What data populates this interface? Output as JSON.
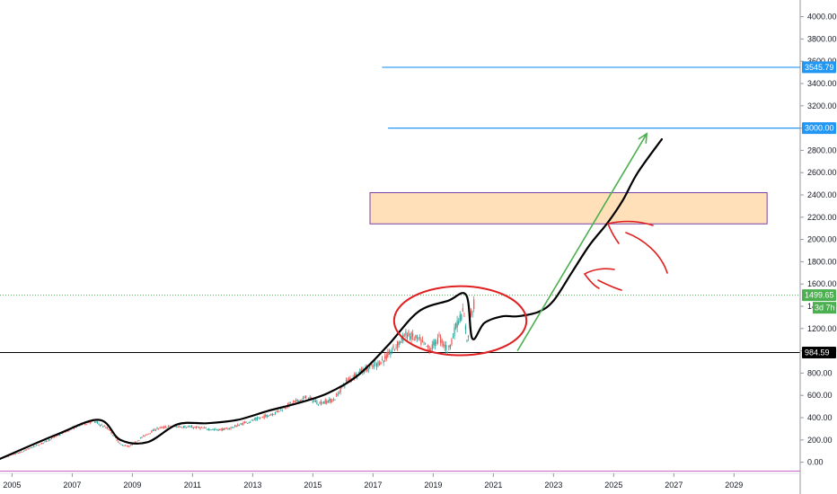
{
  "chart_data": {
    "type": "candlestick",
    "x_ticks": [
      "2005",
      "2007",
      "2009",
      "2011",
      "2013",
      "2015",
      "2017",
      "2019",
      "2021",
      "2023",
      "2025",
      "2027",
      "2029"
    ],
    "y_ticks": [
      "4000.00",
      "3800.00",
      "3600.00",
      "3400.00",
      "3200.00",
      "3000.00",
      "2800.00",
      "2600.00",
      "2400.00",
      "2200.00",
      "2000.00",
      "1800.00",
      "1600.00",
      "1400.00",
      "1200.00",
      "1000.00",
      "800.00",
      "600.00",
      "400.00",
      "200.00",
      "0.00"
    ],
    "ylim": [
      -100,
      4150
    ],
    "xlim": [
      2004.6,
      2031.2
    ],
    "price_path": [
      [
        2004.7,
        40
      ],
      [
        2005.3,
        90
      ],
      [
        2006.0,
        170
      ],
      [
        2006.6,
        250
      ],
      [
        2007.2,
        330
      ],
      [
        2007.7,
        370
      ],
      [
        2008.2,
        300
      ],
      [
        2008.6,
        160
      ],
      [
        2008.9,
        140
      ],
      [
        2009.3,
        220
      ],
      [
        2009.8,
        300
      ],
      [
        2010.2,
        320
      ],
      [
        2010.7,
        320
      ],
      [
        2011.2,
        310
      ],
      [
        2011.8,
        290
      ],
      [
        2012.2,
        300
      ],
      [
        2012.7,
        350
      ],
      [
        2013.3,
        400
      ],
      [
        2013.8,
        450
      ],
      [
        2014.3,
        530
      ],
      [
        2014.8,
        580
      ],
      [
        2015.2,
        530
      ],
      [
        2015.7,
        560
      ],
      [
        2016.1,
        720
      ],
      [
        2016.6,
        820
      ],
      [
        2017.0,
        860
      ],
      [
        2017.4,
        930
      ],
      [
        2017.8,
        1050
      ],
      [
        2018.1,
        1150
      ],
      [
        2018.5,
        1100
      ],
      [
        2018.9,
        1010
      ],
      [
        2019.2,
        1120
      ],
      [
        2019.5,
        1000
      ],
      [
        2019.8,
        1250
      ],
      [
        2020.0,
        1350
      ],
      [
        2020.15,
        1060
      ],
      [
        2020.25,
        1330
      ],
      [
        2020.4,
        1450
      ]
    ],
    "projection_curve": [
      [
        2004.6,
        30
      ],
      [
        2006.5,
        250
      ],
      [
        2007.9,
        380
      ],
      [
        2008.6,
        200
      ],
      [
        2009.5,
        180
      ],
      [
        2010.5,
        340
      ],
      [
        2011.5,
        350
      ],
      [
        2012.5,
        380
      ],
      [
        2013.5,
        460
      ],
      [
        2014.5,
        530
      ],
      [
        2015.5,
        620
      ],
      [
        2016.5,
        780
      ],
      [
        2017.5,
        1050
      ],
      [
        2018.5,
        1350
      ],
      [
        2019.5,
        1450
      ],
      [
        2020.1,
        1500
      ],
      [
        2020.3,
        1110
      ],
      [
        2020.7,
        1250
      ],
      [
        2021.3,
        1310
      ],
      [
        2021.8,
        1310
      ],
      [
        2022.5,
        1350
      ],
      [
        2023.0,
        1450
      ],
      [
        2023.6,
        1700
      ],
      [
        2024.2,
        1950
      ],
      [
        2024.8,
        2150
      ],
      [
        2025.3,
        2350
      ],
      [
        2025.8,
        2600
      ],
      [
        2026.6,
        2900
      ]
    ],
    "last_price": "1499.65",
    "last_price_countdown": "3d 7h",
    "support_level": "984.59",
    "target_levels": [
      "3000.00",
      "3545.79"
    ],
    "zone": {
      "low": 2140,
      "high": 2420,
      "start": 2016.9,
      "end": 2030.1
    },
    "arrow": {
      "from": [
        2021.8,
        1000
      ],
      "to": [
        2026.1,
        2950
      ]
    },
    "ellipse": {
      "center": [
        2019.9,
        1270
      ],
      "rx_years": 2.2,
      "ry_value": 310
    },
    "extra_hline": -80,
    "colors": {
      "up": "#26a69a",
      "down": "#ef5350",
      "curve": "#000000",
      "ellipse": "#e02020",
      "arrow": "#4caf50",
      "zone_fill": "#ffe0b8",
      "zone_border": "#7b3fa5",
      "target_line": "#2196f3",
      "last_price": "#4caf50",
      "support": "#000000",
      "purple_line": "#cc66cc"
    }
  }
}
